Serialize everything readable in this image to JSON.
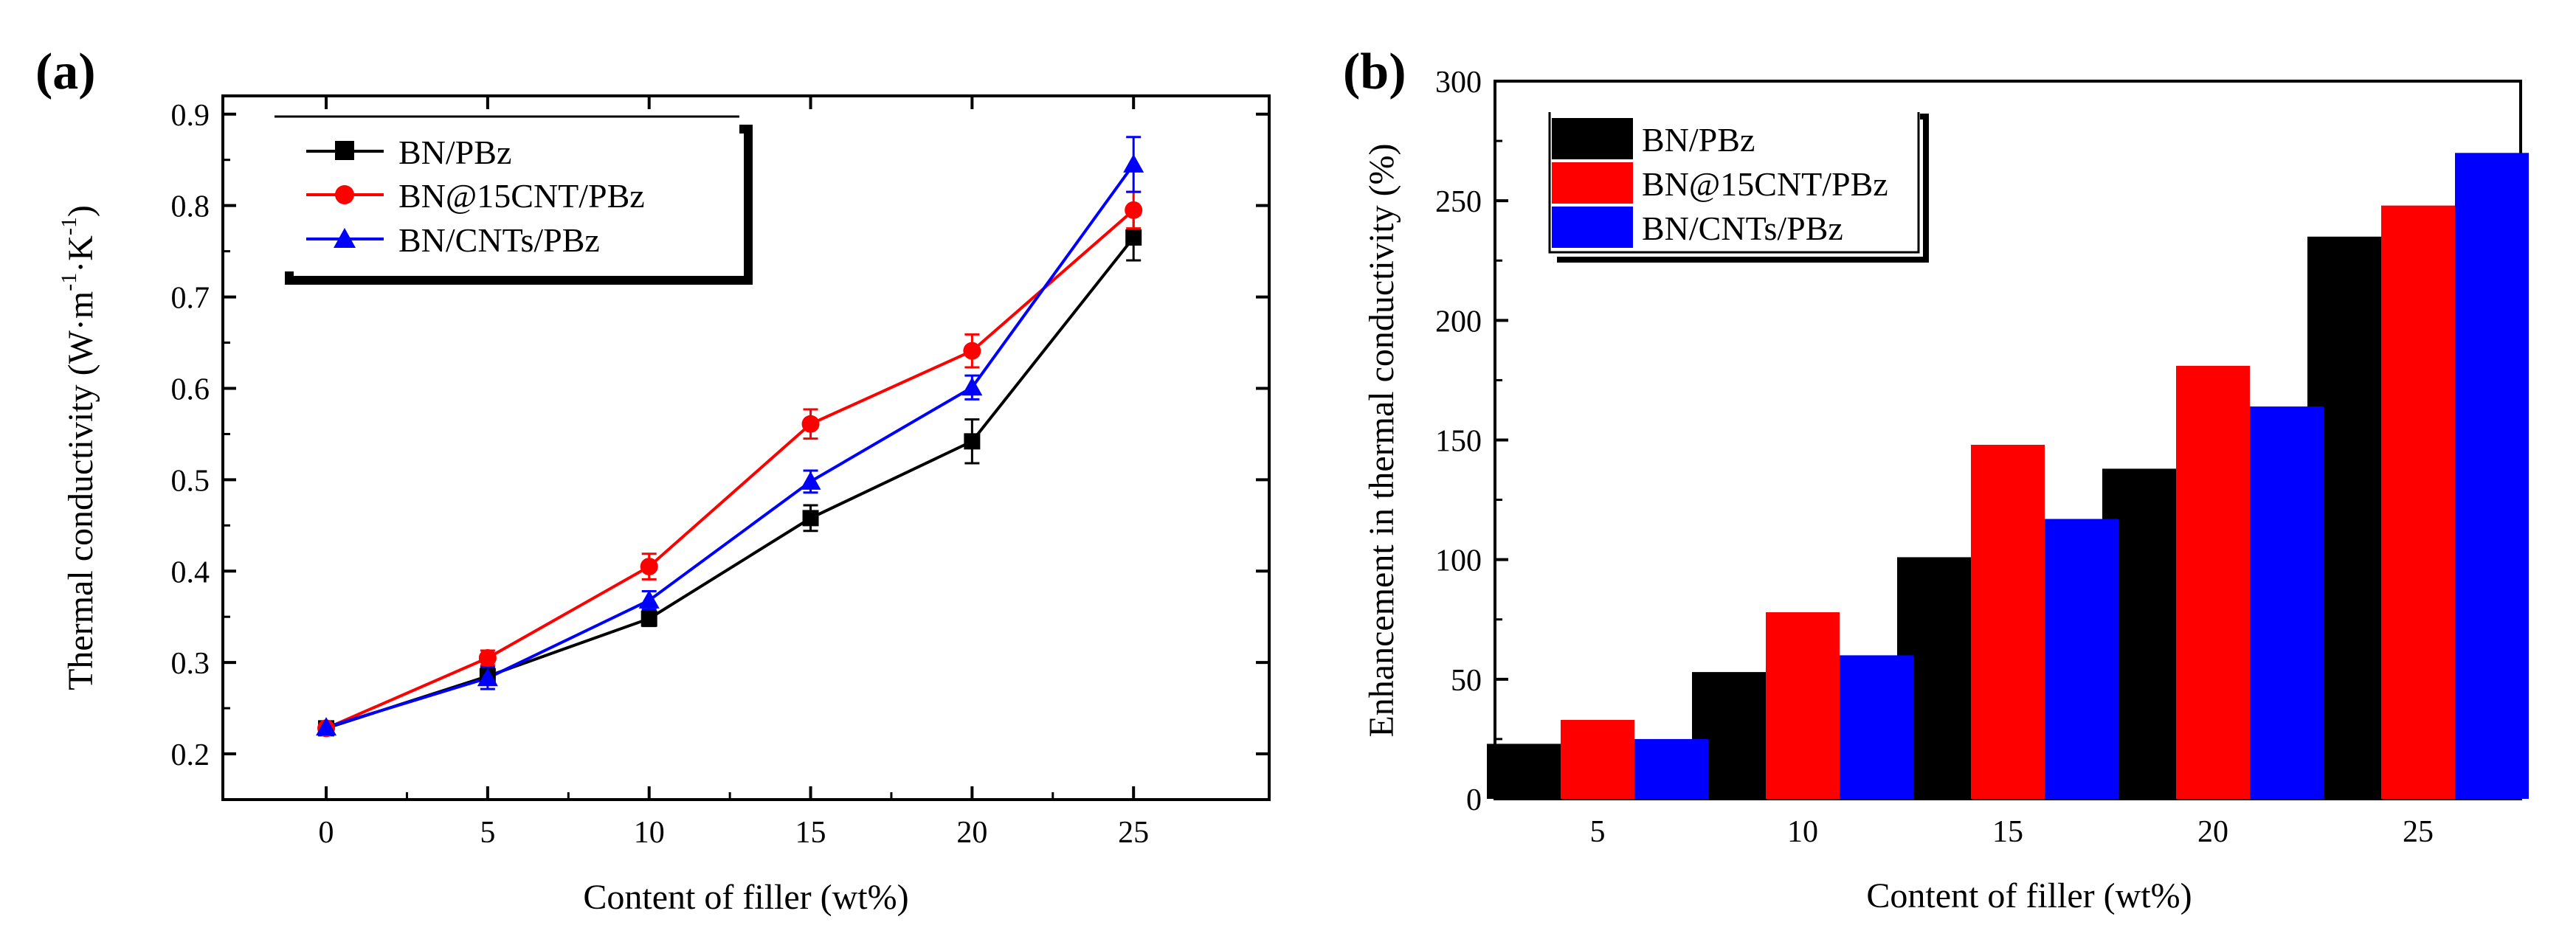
{
  "panel_labels": {
    "a": "(a)",
    "b": "(b)"
  },
  "colors": {
    "black": "#000000",
    "red": "#ff0000",
    "blue": "#0000ff"
  },
  "chart_data": [
    {
      "type": "line",
      "xlabel": "Content of filler (wt%)",
      "ylabel_main": "Thermal conductivity (W·m",
      "ylabel_sup1": "-1",
      "ylabel_mid": "·K",
      "ylabel_sup2": "-1",
      "ylabel_end": ")",
      "xlim": [
        -3.2,
        29.2
      ],
      "ylim": [
        0.15,
        0.92
      ],
      "xticks": [
        0,
        5,
        10,
        15,
        20,
        25
      ],
      "yticks": [
        0.2,
        0.3,
        0.4,
        0.5,
        0.6,
        0.7,
        0.8,
        0.9
      ],
      "ytick_labels": [
        "0.2",
        "0.3",
        "0.4",
        "0.5",
        "0.6",
        "0.7",
        "0.8",
        "0.9"
      ],
      "x": [
        0,
        5,
        10,
        15,
        20,
        25
      ],
      "legend_position": "top-left",
      "series": [
        {
          "name": "BN/PBz",
          "color": "#000000",
          "marker": "square",
          "values": [
            0.228,
            0.285,
            0.348,
            0.458,
            0.542,
            0.765
          ],
          "errors": [
            0.005,
            0.008,
            0.008,
            0.014,
            0.024,
            0.025
          ]
        },
        {
          "name": "BN@15CNT/PBz",
          "color": "#ff0000",
          "marker": "circle",
          "values": [
            0.228,
            0.305,
            0.405,
            0.561,
            0.641,
            0.795
          ],
          "errors": [
            0.005,
            0.008,
            0.014,
            0.016,
            0.018,
            0.02
          ]
        },
        {
          "name": "BN/CNTs/PBz",
          "color": "#0000ff",
          "marker": "triangle",
          "values": [
            0.229,
            0.283,
            0.368,
            0.498,
            0.601,
            0.845
          ],
          "errors": [
            0.005,
            0.012,
            0.01,
            0.012,
            0.013,
            0.03
          ]
        }
      ]
    },
    {
      "type": "bar",
      "xlabel": "Content of filler (wt%)",
      "ylabel": "Enhancement in thermal conductivity (%)",
      "categories": [
        "5",
        "10",
        "15",
        "20",
        "25"
      ],
      "ylim": [
        0,
        300
      ],
      "yticks": [
        0,
        50,
        100,
        150,
        200,
        250,
        300
      ],
      "legend_position": "top-left",
      "series": [
        {
          "name": "BN/PBz",
          "color": "#000000",
          "values": [
            23,
            53,
            101,
            138,
            235
          ]
        },
        {
          "name": "BN@15CNT/PBz",
          "color": "#ff0000",
          "values": [
            33,
            78,
            148,
            181,
            248
          ]
        },
        {
          "name": "BN/CNTs/PBz",
          "color": "#0000ff",
          "values": [
            25,
            60,
            117,
            164,
            270
          ]
        }
      ]
    }
  ]
}
